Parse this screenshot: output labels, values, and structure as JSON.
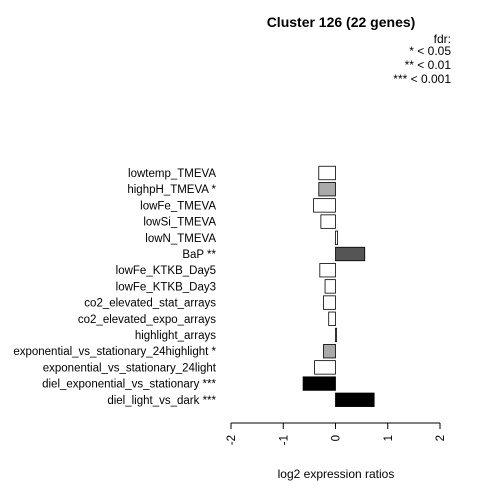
{
  "chart_data": {
    "type": "bar",
    "orientation": "horizontal",
    "title": "Cluster 126 (22 genes)",
    "xlabel": "log2 expression ratios",
    "xlim": [
      -2,
      2
    ],
    "xticks": [
      "-2",
      "-1",
      "0",
      "1",
      "2"
    ],
    "legend": {
      "title": "fdr:",
      "entries": [
        "* < 0.05",
        "** < 0.01",
        "*** < 0.001"
      ],
      "placement": "top-right"
    },
    "categories": [
      "lowtemp_TMEVA",
      "highpH_TMEVA *",
      "lowFe_TMEVA",
      "lowSi_TMEVA",
      "lowN_TMEVA",
      "BaP **",
      "lowFe_KTKB_Day5",
      "lowFe_KTKB_Day3",
      "co2_elevated_stat_arrays",
      "co2_elevated_expo_arrays",
      "highlight_arrays",
      "exponential_vs_stationary_24highlight *",
      "exponential_vs_stationary_24light",
      "diel_exponential_vs_stationary ***",
      "diel_light_vs_dark ***"
    ],
    "values": [
      -0.32,
      -0.32,
      -0.42,
      -0.28,
      0.04,
      0.56,
      -0.3,
      -0.2,
      -0.23,
      -0.13,
      0.02,
      -0.23,
      -0.4,
      -0.62,
      0.74
    ],
    "colors": [
      "#ffffff",
      "#aaaaaa",
      "#ffffff",
      "#ffffff",
      "#ffffff",
      "#555555",
      "#ffffff",
      "#ffffff",
      "#ffffff",
      "#ffffff",
      "#ffffff",
      "#aaaaaa",
      "#ffffff",
      "#000000",
      "#000000"
    ]
  }
}
